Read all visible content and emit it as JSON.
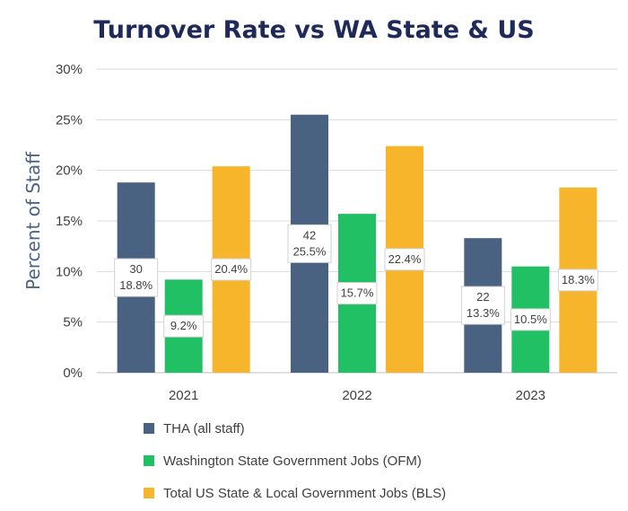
{
  "chart_data": {
    "type": "bar",
    "title": "Turnover Rate vs WA State & US",
    "ylabel": "Percent of Staff",
    "xlabel": "",
    "ylim": [
      0,
      30
    ],
    "yticks": [
      "0%",
      "5%",
      "10%",
      "15%",
      "20%",
      "25%",
      "30%"
    ],
    "grid": true,
    "legend_position": "bottom",
    "categories": [
      "2021",
      "2022",
      "2023"
    ],
    "series": [
      {
        "name": "THA (all staff)",
        "color": "#4a6282",
        "values": [
          18.8,
          25.5,
          13.3
        ],
        "labels": [
          [
            "30",
            "18.8%"
          ],
          [
            "42",
            "25.5%"
          ],
          [
            "22",
            "13.3%"
          ]
        ]
      },
      {
        "name": "Washington State Government Jobs (OFM)",
        "color": "#21c064",
        "values": [
          9.2,
          15.7,
          10.5
        ],
        "labels": [
          [
            "9.2%"
          ],
          [
            "15.7%"
          ],
          [
            "10.5%"
          ]
        ]
      },
      {
        "name": "Total US State & Local Government Jobs (BLS)",
        "color": "#f6b52a",
        "values": [
          20.4,
          22.4,
          18.3
        ],
        "labels": [
          [
            "20.4%"
          ],
          [
            "22.4%"
          ],
          [
            "18.3%"
          ]
        ]
      }
    ]
  }
}
